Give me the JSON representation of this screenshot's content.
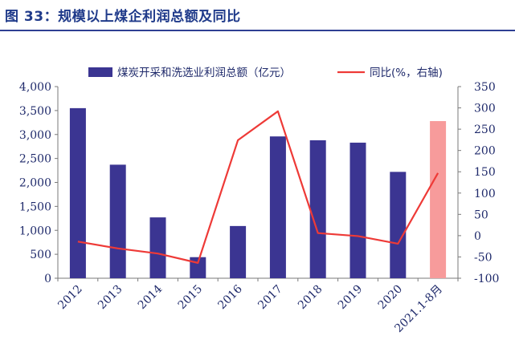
{
  "figure_title": "图 33：规模以上煤企利润总额及同比",
  "chart_data": {
    "type": "bar",
    "categories": [
      "2012",
      "2013",
      "2014",
      "2015",
      "2016",
      "2017",
      "2018",
      "2019",
      "2020",
      "2021.1-8月"
    ],
    "series": [
      {
        "name": "煤炭开采和洗选业利润总额（亿元）",
        "type": "bar",
        "axis": "left",
        "values": [
          3550,
          2370,
          1270,
          440,
          1090,
          2960,
          2880,
          2830,
          2220,
          3280
        ],
        "color": "#3b3592",
        "highlight_color": "#f79b9b",
        "highlight_index": 9
      },
      {
        "name": "同比(%，右轴)",
        "type": "line",
        "axis": "right",
        "values": [
          -14,
          -30,
          -42,
          -64,
          224,
          292,
          6,
          -1,
          -19,
          147
        ],
        "color": "#ee3a37"
      }
    ],
    "y_left": {
      "min": 0,
      "max": 4000,
      "step": 500,
      "tick_labels": [
        "0",
        "500",
        "1,000",
        "1,500",
        "2,000",
        "2,500",
        "3,000",
        "3,500",
        "4,000"
      ]
    },
    "y_right": {
      "min": -100,
      "max": 350,
      "step": 50,
      "tick_labels": [
        "-100",
        "-50",
        "0",
        "50",
        "100",
        "150",
        "200",
        "250",
        "300",
        "350"
      ]
    },
    "legend_position": "top",
    "grid": false
  }
}
